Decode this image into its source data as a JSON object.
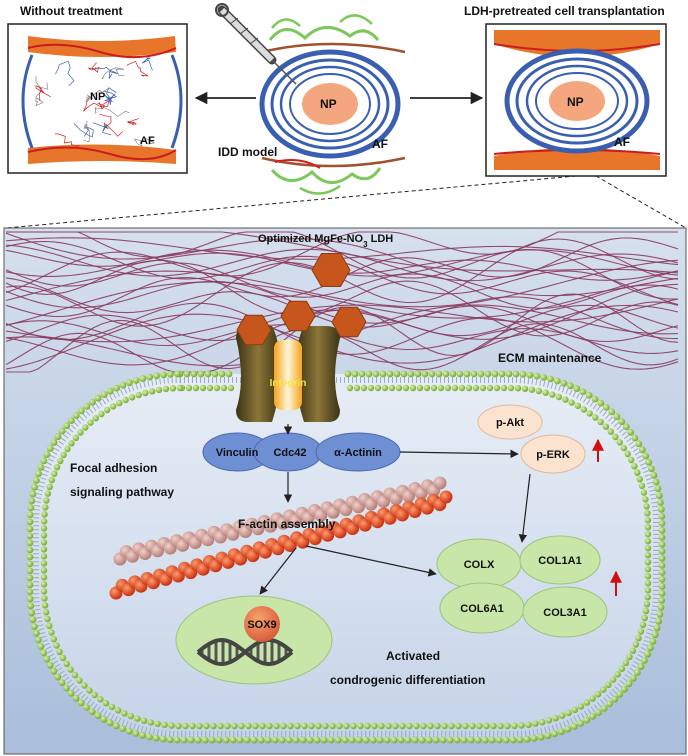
{
  "top": {
    "left_title": "Without treatment",
    "right_title": "LDH-pretreated cell transplantation",
    "center_label": "IDD model",
    "np_label": "NP",
    "af_label": "AF"
  },
  "cell": {
    "ldh_title_main": "Optimized MgFe-NO",
    "ldh_title_sub": "3",
    "ldh_title_end": " LDH",
    "ecm": "ECM maintenance",
    "integrin": "Integrin",
    "vinculin": "Vinculin",
    "cdc42": "Cdc42",
    "actinin": "α-Actinin",
    "pakt": "p-Akt",
    "perk": "p-ERK",
    "pathway_line1": "Focal adhesion",
    "pathway_line2": "signaling pathway",
    "factin": "F-actin assembly",
    "sox9": "SOX9",
    "colx": "COLX",
    "col1a1": "COL1A1",
    "col6a1": "COL6A1",
    "col3a1": "COL3A1",
    "activated_line1": "Activated",
    "activated_line2": "condrogenic differentiation"
  },
  "colors": {
    "np": "#f4a77f",
    "af_ring": "#3a5fb0",
    "endplate": "#e8762a",
    "lipid_head": "#9ccc4a",
    "integrin": "#6b5a2a",
    "ldh": "#c6561b",
    "ecm_fiber": "#8a3b5e",
    "protein_blue": "#6f8fd4",
    "akt": "#fbe3cf",
    "gene_green": "#c7e6a8",
    "actin_pink": "#c7928a",
    "actin_red": "#e23a14",
    "arrow_red": "#d01010"
  }
}
